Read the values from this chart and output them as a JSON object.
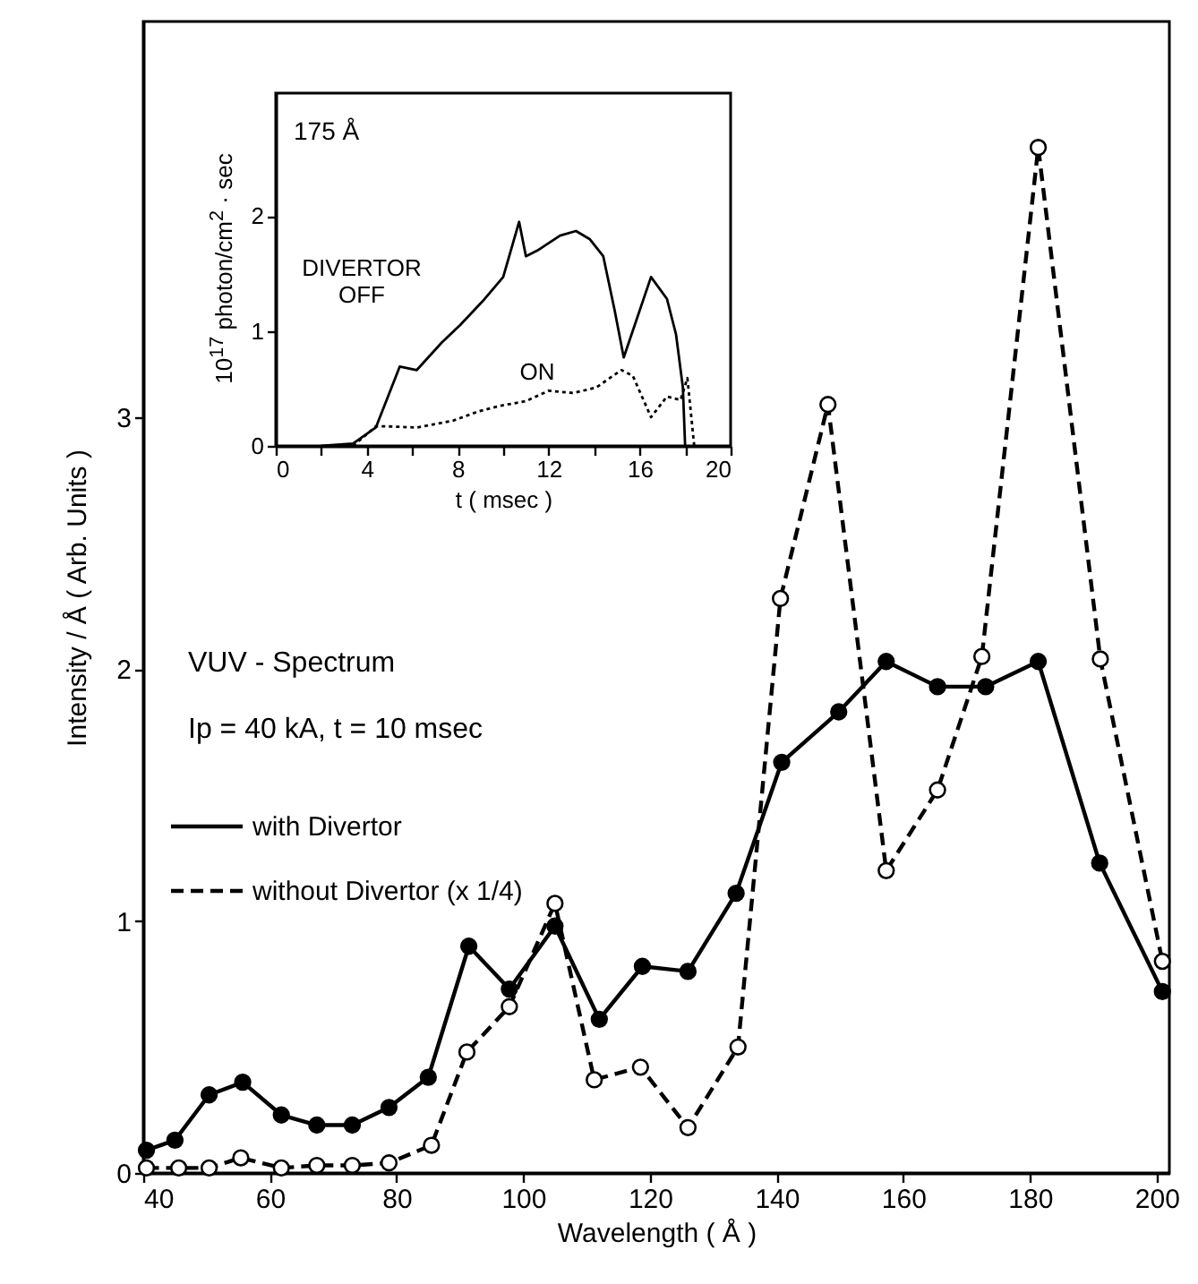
{
  "chart_data": [
    {
      "type": "line",
      "xlabel": "Wavelength   ( Å )",
      "ylabel": "Intensity / Å   ( Arb. Units )",
      "annotations": [
        "VUV - Spectrum",
        "Ip = 40 kA,   t = 10 msec"
      ],
      "xlim": [
        40,
        202
      ],
      "ylim": [
        0,
        4.57
      ],
      "xticks": [
        40,
        60,
        80,
        100,
        120,
        140,
        160,
        180,
        200
      ],
      "yticks": [
        0,
        1,
        2,
        3
      ],
      "grid": false,
      "legend": "left",
      "marker": "circle",
      "series": [
        {
          "name": "with Divertor",
          "color": "#000000",
          "line_style": "solid",
          "x": [
            40.5,
            45,
            50.4,
            55.7,
            61.8,
            67.4,
            73,
            78.8,
            85,
            91.4,
            97.8,
            105,
            112,
            118.8,
            126,
            133.6,
            140.8,
            149.8,
            157.3,
            165.4,
            173,
            181.3,
            191,
            200.9
          ],
          "values": [
            0.09,
            0.13,
            0.31,
            0.36,
            0.23,
            0.19,
            0.19,
            0.26,
            0.38,
            0.9,
            0.73,
            0.98,
            0.61,
            0.82,
            0.8,
            1.11,
            1.63,
            1.83,
            2.03,
            1.93,
            1.93,
            2.03,
            1.23,
            0.72
          ]
        },
        {
          "name": "without Divertor (x 1/4)",
          "color": "#000000",
          "line_style": "dashed",
          "x": [
            40.5,
            45.6,
            50.4,
            55.4,
            61.8,
            67.4,
            73,
            78.8,
            85.5,
            91.1,
            97.8,
            105,
            111.2,
            118.5,
            126,
            133.9,
            140.6,
            148.1,
            157.3,
            165.4,
            172.4,
            181.3,
            191.1,
            200.9
          ],
          "values": [
            0.02,
            0.02,
            0.02,
            0.06,
            0.02,
            0.03,
            0.03,
            0.04,
            0.11,
            0.48,
            0.66,
            1.07,
            0.37,
            0.42,
            0.18,
            0.5,
            2.28,
            3.05,
            1.2,
            1.52,
            2.05,
            4.07,
            2.04,
            0.84
          ]
        }
      ]
    },
    {
      "type": "line",
      "xlabel": "t ( msec )",
      "ylabel": "10$^{17}$ photon/cm$^{2}$ · sec",
      "annotations": [
        "175 Å"
      ],
      "xlim": [
        0,
        20
      ],
      "ylim": [
        0,
        3.07
      ],
      "xticks": [
        0,
        {
          "value": 2,
          "label": null
        },
        4,
        {
          "value": 6,
          "label": null
        },
        8,
        {
          "value": 10,
          "label": null
        },
        12,
        {
          "value": 14,
          "label": null
        },
        16,
        {
          "value": 18,
          "label": null
        },
        20
      ],
      "yticks": [
        0,
        1,
        2
      ],
      "grid": false,
      "marker": "none",
      "series": [
        {
          "name": "DIVERTOR OFF",
          "color": "#000000",
          "line_style": "solid",
          "x": [
            2,
            3.4,
            4.4,
            5.45,
            6.2,
            7.3,
            8.1,
            9.1,
            10,
            10.7,
            11,
            11.5,
            12.5,
            13.2,
            13.8,
            14.4,
            14.9,
            15.3,
            16.5,
            17.2,
            17.6,
            17.9,
            18
          ],
          "values": [
            0,
            0.02,
            0.16,
            0.69,
            0.66,
            0.9,
            1.05,
            1.26,
            1.47,
            1.95,
            1.65,
            1.7,
            1.83,
            1.87,
            1.8,
            1.65,
            1.18,
            0.77,
            1.47,
            1.28,
            0.97,
            0.51,
            0
          ]
        },
        {
          "name": "ON",
          "color": "#000000",
          "line_style": "dotted",
          "x": [
            3.4,
            4.4,
            4.9,
            6.2,
            7.8,
            8.9,
            9.9,
            11,
            12,
            13.1,
            14.1,
            15.2,
            15.7,
            16.5,
            17.2,
            17.8,
            18.1,
            18.4
          ],
          "values": [
            0,
            0.17,
            0.17,
            0.16,
            0.22,
            0.3,
            0.35,
            0.39,
            0.48,
            0.46,
            0.51,
            0.66,
            0.61,
            0.25,
            0.43,
            0.4,
            0.59,
            0
          ]
        }
      ]
    }
  ]
}
